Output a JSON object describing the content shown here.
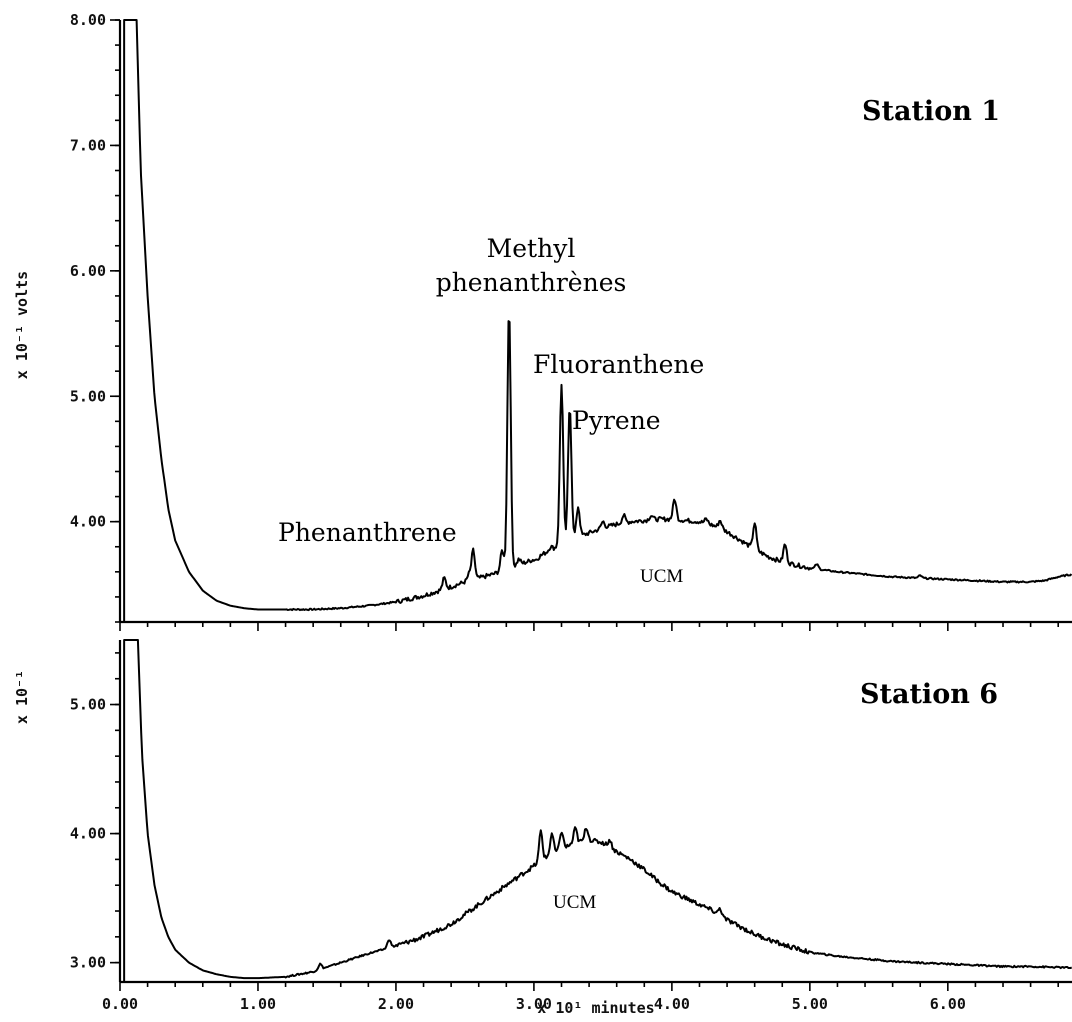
{
  "chart_data": [
    {
      "type": "line",
      "panel": "top",
      "title": "Station 1",
      "ylabel": "x 10⁻¹ volts",
      "xlabel": "",
      "xlim": [
        0,
        69
      ],
      "ylim": [
        3.2,
        8.0
      ],
      "yticks": [
        {
          "value": 4.0,
          "label": "4.00"
        },
        {
          "value": 5.0,
          "label": "5.00"
        },
        {
          "value": 6.0,
          "label": "6.00"
        },
        {
          "value": 7.0,
          "label": "7.00"
        },
        {
          "value": 8.0,
          "label": "8.00"
        }
      ],
      "annotations": [
        {
          "text": "Phenanthrene",
          "x": 25.5
        },
        {
          "text": "Methyl",
          "x": 28.2
        },
        {
          "text": "phenanthrènes",
          "x": 28.2
        },
        {
          "text": "Fluoranthene",
          "x": 32.0
        },
        {
          "text": "Pyrene",
          "x": 32.6
        },
        {
          "text": "UCM",
          "x": 39.5
        }
      ],
      "baseline": [
        [
          1.2,
          8.0
        ],
        [
          1.5,
          6.8
        ],
        [
          2.0,
          5.8
        ],
        [
          2.5,
          5.0
        ],
        [
          3.0,
          4.5
        ],
        [
          3.5,
          4.1
        ],
        [
          4.0,
          3.85
        ],
        [
          5.0,
          3.6
        ],
        [
          6.0,
          3.45
        ],
        [
          7.0,
          3.37
        ],
        [
          8.0,
          3.33
        ],
        [
          9.0,
          3.31
        ],
        [
          10.0,
          3.3
        ],
        [
          12.0,
          3.3
        ],
        [
          14.0,
          3.3
        ],
        [
          16.0,
          3.31
        ],
        [
          18.0,
          3.33
        ],
        [
          20.0,
          3.36
        ],
        [
          22.0,
          3.41
        ],
        [
          24.0,
          3.48
        ],
        [
          25.0,
          3.52
        ],
        [
          26.0,
          3.55
        ],
        [
          27.0,
          3.58
        ],
        [
          28.0,
          3.62
        ],
        [
          29.0,
          3.66
        ],
        [
          30.0,
          3.7
        ],
        [
          31.0,
          3.76
        ],
        [
          32.0,
          3.82
        ],
        [
          33.0,
          3.87
        ],
        [
          34.0,
          3.91
        ],
        [
          35.0,
          3.95
        ],
        [
          36.0,
          3.98
        ],
        [
          37.0,
          4.0
        ],
        [
          38.0,
          4.01
        ],
        [
          39.0,
          4.02
        ],
        [
          40.0,
          4.02
        ],
        [
          41.0,
          4.01
        ],
        [
          42.0,
          4.0
        ],
        [
          43.0,
          3.97
        ],
        [
          44.0,
          3.92
        ],
        [
          45.0,
          3.85
        ],
        [
          46.0,
          3.78
        ],
        [
          47.0,
          3.72
        ],
        [
          48.0,
          3.68
        ],
        [
          50.0,
          3.63
        ],
        [
          52.0,
          3.6
        ],
        [
          54.0,
          3.58
        ],
        [
          56.0,
          3.56
        ],
        [
          58.0,
          3.55
        ],
        [
          60.0,
          3.54
        ],
        [
          62.0,
          3.53
        ],
        [
          64.0,
          3.52
        ],
        [
          66.0,
          3.52
        ],
        [
          67.0,
          3.53
        ],
        [
          68.0,
          3.56
        ],
        [
          69.0,
          3.58
        ]
      ],
      "peaks": [
        [
          23.5,
          3.55
        ],
        [
          25.3,
          3.58
        ],
        [
          25.6,
          3.77
        ],
        [
          27.7,
          3.77
        ],
        [
          28.2,
          5.72
        ],
        [
          28.9,
          3.7
        ],
        [
          30.2,
          3.7
        ],
        [
          30.8,
          3.75
        ],
        [
          31.2,
          3.8
        ],
        [
          32.0,
          5.1
        ],
        [
          32.6,
          4.93
        ],
        [
          33.2,
          4.12
        ],
        [
          35.0,
          4.0
        ],
        [
          36.5,
          4.05
        ],
        [
          38.5,
          4.05
        ],
        [
          40.2,
          4.18
        ],
        [
          42.5,
          4.02
        ],
        [
          43.5,
          4.01
        ],
        [
          46.0,
          3.99
        ],
        [
          48.2,
          3.82
        ],
        [
          50.5,
          3.66
        ],
        [
          58.0,
          3.57
        ]
      ]
    },
    {
      "type": "line",
      "panel": "bottom",
      "title": "Station 6",
      "ylabel": "x 10⁻¹",
      "xlabel": "x 10¹ minutes",
      "xlim": [
        0,
        69
      ],
      "ylim": [
        2.85,
        5.5
      ],
      "yticks": [
        {
          "value": 3.0,
          "label": "3.00"
        },
        {
          "value": 4.0,
          "label": "4.00"
        },
        {
          "value": 5.0,
          "label": "5.00"
        }
      ],
      "xticks": [
        {
          "value": 0,
          "label": "0.00"
        },
        {
          "value": 10,
          "label": "1.00"
        },
        {
          "value": 20,
          "label": "2.00"
        },
        {
          "value": 30,
          "label": "3.00"
        },
        {
          "value": 40,
          "label": "4.00"
        },
        {
          "value": 50,
          "label": "5.00"
        },
        {
          "value": 60,
          "label": "6.00"
        }
      ],
      "annotations": [
        {
          "text": "UCM",
          "x": 35.5
        }
      ],
      "baseline": [
        [
          1.3,
          5.5
        ],
        [
          1.6,
          4.6
        ],
        [
          2.0,
          4.0
        ],
        [
          2.5,
          3.6
        ],
        [
          3.0,
          3.35
        ],
        [
          3.5,
          3.2
        ],
        [
          4.0,
          3.1
        ],
        [
          5.0,
          3.0
        ],
        [
          6.0,
          2.94
        ],
        [
          7.0,
          2.91
        ],
        [
          8.0,
          2.89
        ],
        [
          9.0,
          2.88
        ],
        [
          10.0,
          2.88
        ],
        [
          12.0,
          2.89
        ],
        [
          14.0,
          2.93
        ],
        [
          16.0,
          3.0
        ],
        [
          18.0,
          3.07
        ],
        [
          20.0,
          3.13
        ],
        [
          22.0,
          3.2
        ],
        [
          24.0,
          3.3
        ],
        [
          26.0,
          3.45
        ],
        [
          28.0,
          3.6
        ],
        [
          30.0,
          3.75
        ],
        [
          31.0,
          3.82
        ],
        [
          32.0,
          3.88
        ],
        [
          33.0,
          3.93
        ],
        [
          34.0,
          3.95
        ],
        [
          35.0,
          3.93
        ],
        [
          36.0,
          3.86
        ],
        [
          37.0,
          3.8
        ],
        [
          38.0,
          3.72
        ],
        [
          39.0,
          3.63
        ],
        [
          40.0,
          3.55
        ],
        [
          41.0,
          3.5
        ],
        [
          42.0,
          3.45
        ],
        [
          43.0,
          3.4
        ],
        [
          44.0,
          3.33
        ],
        [
          46.0,
          3.22
        ],
        [
          48.0,
          3.14
        ],
        [
          50.0,
          3.08
        ],
        [
          52.0,
          3.05
        ],
        [
          54.0,
          3.03
        ],
        [
          56.0,
          3.01
        ],
        [
          58.0,
          3.0
        ],
        [
          60.0,
          2.99
        ],
        [
          62.0,
          2.98
        ],
        [
          64.0,
          2.97
        ],
        [
          66.0,
          2.97
        ],
        [
          69.0,
          2.96
        ]
      ],
      "peaks": [
        [
          14.5,
          2.99
        ],
        [
          19.5,
          3.18
        ],
        [
          30.5,
          4.02
        ],
        [
          31.3,
          4.0
        ],
        [
          32.0,
          4.02
        ],
        [
          33.0,
          4.04
        ],
        [
          33.8,
          4.05
        ],
        [
          35.5,
          3.95
        ],
        [
          43.5,
          3.42
        ]
      ]
    }
  ]
}
